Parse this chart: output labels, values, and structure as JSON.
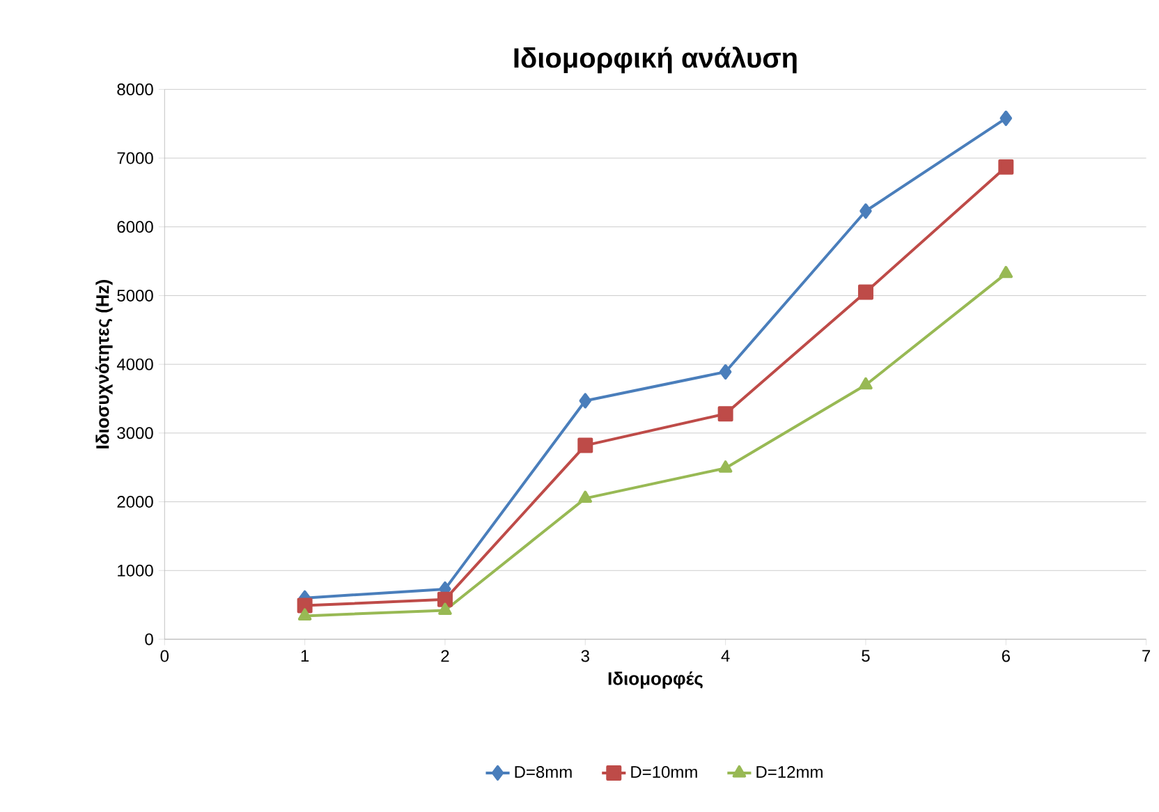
{
  "chart_data": {
    "type": "line",
    "title": "Ιδιομορφική ανάλυση",
    "xlabel": "Ιδιομορφές",
    "ylabel": "Ιδιοσυχνότητες (Hz)",
    "x": [
      1,
      2,
      3,
      4,
      5,
      6
    ],
    "series": [
      {
        "name": "D=8mm",
        "color": "#4a7ebb",
        "marker": "diamond",
        "values": [
          600,
          730,
          3470,
          3890,
          6230,
          7580
        ]
      },
      {
        "name": "D=10mm",
        "color": "#be4b48",
        "marker": "square",
        "values": [
          490,
          580,
          2820,
          3280,
          5050,
          6870
        ]
      },
      {
        "name": "D=12mm",
        "color": "#98b954",
        "marker": "triangle",
        "values": [
          340,
          420,
          2050,
          2490,
          3700,
          5320
        ]
      }
    ],
    "xlim": [
      0,
      7
    ],
    "xticks": [
      0,
      1,
      2,
      3,
      4,
      5,
      6,
      7
    ],
    "ylim": [
      0,
      8000
    ],
    "yticks": [
      0,
      1000,
      2000,
      3000,
      4000,
      5000,
      6000,
      7000,
      8000
    ],
    "grid": "y",
    "legend": "bottom",
    "line_style": "solid"
  }
}
